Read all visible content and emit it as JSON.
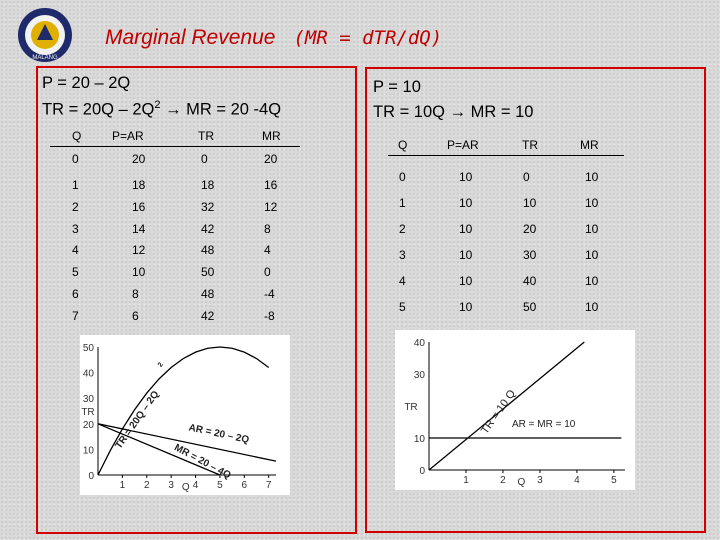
{
  "title": {
    "main": "Marginal Revenue",
    "formula": "(MR = dTR/dQ)"
  },
  "logo": {
    "text": "MALANG",
    "icon": "university-emblem"
  },
  "colors": {
    "title": "#c00000",
    "panel_border": "#d40000"
  },
  "left": {
    "line1": "P = 20 – 2Q",
    "line2_a": "TR = 20Q – 2Q",
    "line2_sup": "2",
    "line2_b": "→ MR = 20 -4Q",
    "table": {
      "headers": [
        "Q",
        "P=AR",
        "TR",
        "MR"
      ],
      "rows": [
        [
          "0",
          "20",
          "0",
          "20"
        ],
        [
          "1",
          "18",
          "18",
          "16"
        ],
        [
          "2",
          "16",
          "32",
          "12"
        ],
        [
          "3",
          "14",
          "42",
          "8"
        ],
        [
          "4",
          "12",
          "48",
          "4"
        ],
        [
          "5",
          "10",
          "50",
          "0"
        ],
        [
          "6",
          "8",
          "48",
          "-4"
        ],
        [
          "7",
          "6",
          "42",
          "-8"
        ]
      ]
    }
  },
  "right": {
    "line1": "P = 10",
    "line2": "TR = 10Q → MR = 10",
    "table": {
      "headers": [
        "Q",
        "P=AR",
        "TR",
        "MR"
      ],
      "rows": [
        [
          "0",
          "10",
          "0",
          "10"
        ],
        [
          "1",
          "10",
          "10",
          "10"
        ],
        [
          "2",
          "10",
          "20",
          "10"
        ],
        [
          "3",
          "10",
          "30",
          "10"
        ],
        [
          "4",
          "10",
          "40",
          "10"
        ],
        [
          "5",
          "10",
          "50",
          "10"
        ]
      ]
    }
  },
  "chart_data": [
    {
      "type": "line",
      "xlabel": "Q",
      "ylabel": "TR",
      "x_ticks": [
        "1",
        "2",
        "3",
        "4",
        "5",
        "6",
        "7"
      ],
      "y_ticks": [
        "0",
        "10",
        "20",
        "30",
        "40",
        "50"
      ],
      "xlim": [
        0,
        7.3
      ],
      "ylim": [
        0,
        50
      ],
      "series": [
        {
          "name": "TR = 20Q – 2Q²",
          "x": [
            0,
            0.5,
            1,
            1.5,
            2,
            2.5,
            3,
            3.5,
            4,
            4.5,
            5,
            5.5,
            6,
            6.5,
            7
          ],
          "y": [
            0,
            9.5,
            18,
            25.5,
            32,
            37.5,
            42,
            45.5,
            48,
            49.5,
            50,
            49.5,
            48,
            45.5,
            42
          ]
        },
        {
          "name": "AR = 20 – 2Q",
          "x": [
            0,
            7.3
          ],
          "y": [
            20,
            5.4
          ]
        },
        {
          "name": "MR = 20 – 4Q",
          "x": [
            0,
            5
          ],
          "y": [
            20,
            0
          ]
        }
      ],
      "annotations": {
        "tr": "TR = 20Q – 2Q",
        "tr_sup": "2",
        "ar": "AR = 20 – 2Q",
        "mr": "MR = 20 – 4Q"
      }
    },
    {
      "type": "line",
      "xlabel": "Q",
      "ylabel": "TR",
      "x_ticks": [
        "1",
        "2",
        "3",
        "4",
        "5"
      ],
      "y_ticks": [
        "0",
        "10",
        "30",
        "40"
      ],
      "xlim": [
        0,
        5.3
      ],
      "ylim": [
        0,
        40
      ],
      "series": [
        {
          "name": "TR = 10 Q",
          "x": [
            0,
            4.2
          ],
          "y": [
            0,
            42
          ]
        },
        {
          "name": "AR = MR = 10",
          "x": [
            0,
            5.2
          ],
          "y": [
            10,
            10
          ]
        }
      ],
      "annotations": {
        "tr": "TR = 10 Q",
        "armr": "AR = MR = 10"
      }
    }
  ]
}
